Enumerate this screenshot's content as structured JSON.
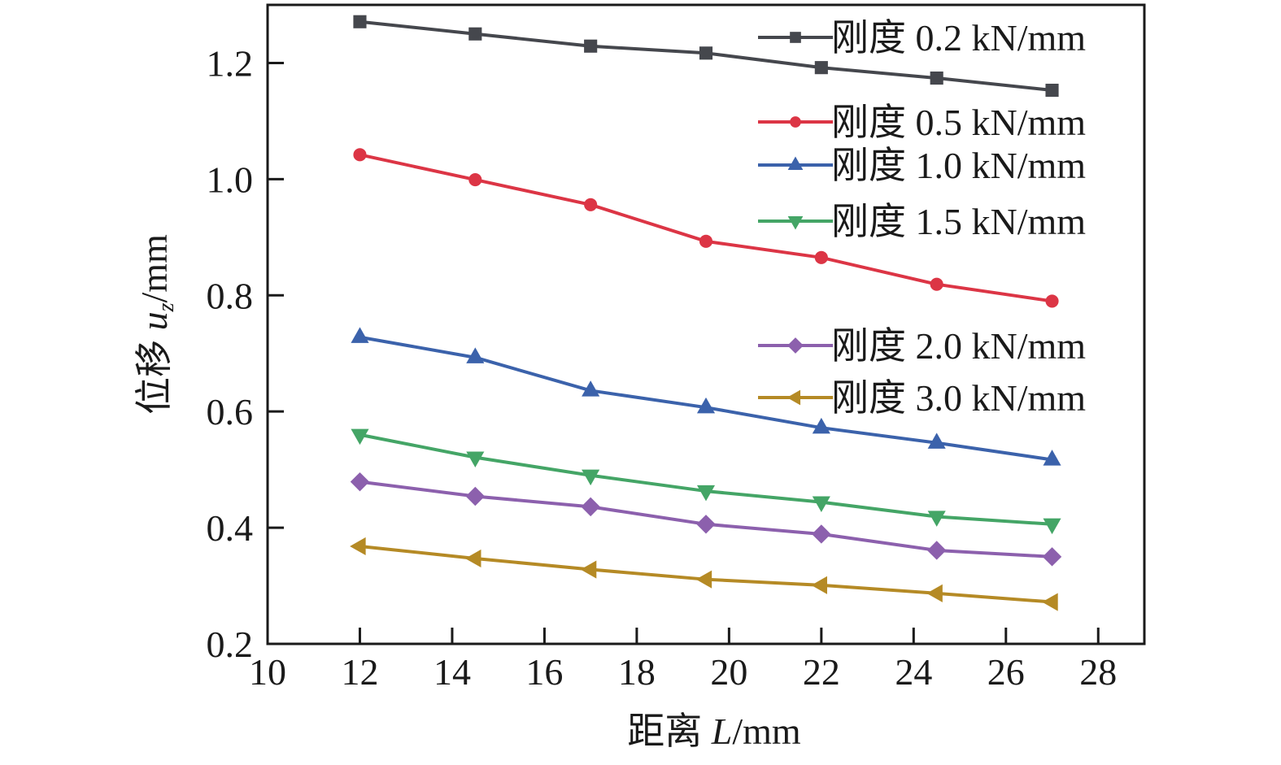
{
  "chart_data": {
    "type": "line",
    "title": "",
    "xlabel": {
      "prefix": "距离 ",
      "var": "L",
      "suffix": "/mm"
    },
    "ylabel": {
      "prefix": "位移 ",
      "var": "u",
      "sub": "z",
      "suffix": "/mm"
    },
    "xlim": [
      10,
      29
    ],
    "ylim": [
      0.2,
      1.3
    ],
    "xticks": [
      10,
      12,
      14,
      16,
      18,
      20,
      22,
      24,
      26,
      28
    ],
    "xtick_labels": [
      "10",
      "12",
      "14",
      "16",
      "18",
      "20",
      "22",
      "24",
      "26",
      "28"
    ],
    "yticks": [
      0.2,
      0.4,
      0.6,
      0.8,
      1.0,
      1.2
    ],
    "ytick_labels": [
      "0.2",
      "0.4",
      "0.6",
      "0.8",
      "1.0",
      "1.2"
    ],
    "grid": false,
    "legend_position": "top-right",
    "x": [
      12,
      14.5,
      17,
      19.5,
      22,
      24.5,
      27
    ],
    "series": [
      {
        "name": "刚度 0.2 kN/mm",
        "color": "#45474d",
        "marker": "square",
        "values": [
          1.271,
          1.25,
          1.229,
          1.217,
          1.192,
          1.174,
          1.153
        ]
      },
      {
        "name": "刚度 0.5 kN/mm",
        "color": "#dc3545",
        "marker": "circle",
        "values": [
          1.042,
          0.999,
          0.956,
          0.893,
          0.865,
          0.819,
          0.79
        ]
      },
      {
        "name": "刚度 1.0 kN/mm",
        "color": "#3b62ab",
        "marker": "triangle-up",
        "values": [
          0.728,
          0.693,
          0.636,
          0.607,
          0.572,
          0.546,
          0.517
        ]
      },
      {
        "name": "刚度 1.5 kN/mm",
        "color": "#44a566",
        "marker": "triangle-down",
        "values": [
          0.56,
          0.521,
          0.49,
          0.463,
          0.444,
          0.419,
          0.406
        ]
      },
      {
        "name": "刚度 2.0 kN/mm",
        "color": "#8c60ad",
        "marker": "diamond",
        "values": [
          0.479,
          0.454,
          0.436,
          0.406,
          0.389,
          0.361,
          0.35
        ]
      },
      {
        "name": "刚度 3.0 kN/mm",
        "color": "#b58a25",
        "marker": "triangle-left",
        "values": [
          0.368,
          0.347,
          0.328,
          0.311,
          0.301,
          0.287,
          0.272
        ]
      }
    ]
  }
}
